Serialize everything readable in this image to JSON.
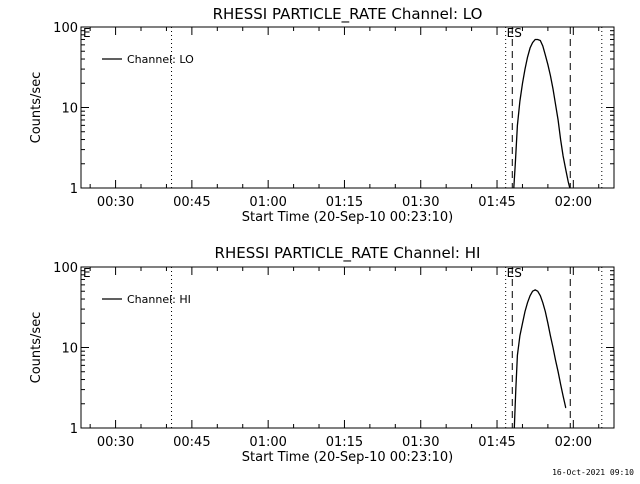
{
  "footer": {
    "timestamp": "16-Oct-2021 09:10"
  },
  "chart_data": [
    {
      "type": "line",
      "title": "RHESSI PARTICLE_RATE Channel: LO",
      "xlabel": "Start Time (20-Sep-10 00:23:10)",
      "ylabel": "Counts/sec",
      "x_units": "minutes after 00:00",
      "xlim": [
        23.2,
        128.0
      ],
      "ylim": [
        1,
        100
      ],
      "y_scale": "log",
      "x_ticks": [
        30,
        45,
        60,
        75,
        90,
        105,
        120
      ],
      "x_tick_labels": [
        "00:30",
        "00:45",
        "01:00",
        "01:15",
        "01:30",
        "01:45",
        "02:00"
      ],
      "y_ticks": [
        1,
        10,
        100
      ],
      "y_tick_labels": [
        "1",
        "10",
        "100"
      ],
      "legend": {
        "position": "top-left",
        "entries": [
          "Channel: LO"
        ]
      },
      "markers": [
        {
          "x": 41.0,
          "style": "dotted",
          "label": ""
        },
        {
          "x": 106.7,
          "style": "dotted",
          "label": ""
        },
        {
          "x": 108.0,
          "style": "dashed",
          "label": ""
        },
        {
          "x": 119.4,
          "style": "dashed",
          "label": ""
        },
        {
          "x": 125.6,
          "style": "dotted",
          "label": ""
        }
      ],
      "annotations": [
        "E",
        "ES"
      ],
      "series": [
        {
          "name": "Channel: LO",
          "x": [
            108.3,
            108.6,
            109.0,
            109.5,
            110.0,
            110.5,
            111.0,
            111.5,
            112.0,
            112.5,
            113.0,
            113.5,
            114.0,
            114.5,
            115.0,
            115.5,
            116.0,
            116.5,
            117.0,
            117.5,
            118.0,
            118.5,
            119.0,
            119.3
          ],
          "values": [
            1.0,
            2.0,
            6.0,
            12.0,
            20.0,
            30.0,
            42.0,
            55.0,
            64.0,
            70.0,
            70.0,
            68.0,
            58.0,
            45.0,
            34.0,
            25.0,
            17.0,
            11.0,
            7.0,
            4.0,
            2.5,
            1.7,
            1.2,
            1.0
          ]
        }
      ]
    },
    {
      "type": "line",
      "title": "RHESSI PARTICLE_RATE Channel: HI",
      "xlabel": "Start Time (20-Sep-10 00:23:10)",
      "ylabel": "Counts/sec",
      "x_units": "minutes after 00:00",
      "xlim": [
        23.2,
        128.0
      ],
      "ylim": [
        1,
        100
      ],
      "y_scale": "log",
      "x_ticks": [
        30,
        45,
        60,
        75,
        90,
        105,
        120
      ],
      "x_tick_labels": [
        "00:30",
        "00:45",
        "01:00",
        "01:15",
        "01:30",
        "01:45",
        "02:00"
      ],
      "y_ticks": [
        1,
        10,
        100
      ],
      "y_tick_labels": [
        "1",
        "10",
        "100"
      ],
      "legend": {
        "position": "top-left",
        "entries": [
          "Channel: HI"
        ]
      },
      "markers": [
        {
          "x": 41.0,
          "style": "dotted",
          "label": ""
        },
        {
          "x": 106.7,
          "style": "dotted",
          "label": ""
        },
        {
          "x": 108.0,
          "style": "dashed",
          "label": ""
        },
        {
          "x": 119.4,
          "style": "dashed",
          "label": ""
        },
        {
          "x": 125.6,
          "style": "dotted",
          "label": ""
        }
      ],
      "annotations": [
        "E",
        "ES"
      ],
      "series": [
        {
          "name": "Channel: HI",
          "x": [
            108.4,
            108.7,
            109.0,
            109.5,
            110.0,
            110.5,
            111.0,
            111.5,
            112.0,
            112.5,
            113.0,
            113.5,
            114.0,
            114.5,
            115.0,
            115.5,
            116.0,
            116.5,
            117.0,
            117.5,
            118.0,
            118.5,
            118.6
          ],
          "values": [
            1.0,
            3.0,
            8.0,
            14.0,
            20.0,
            28.0,
            36.0,
            44.0,
            50.0,
            52.0,
            50.0,
            44.0,
            36.0,
            28.0,
            20.0,
            14.0,
            10.0,
            7.0,
            5.0,
            3.5,
            2.5,
            1.8,
            1.8
          ]
        }
      ]
    }
  ]
}
